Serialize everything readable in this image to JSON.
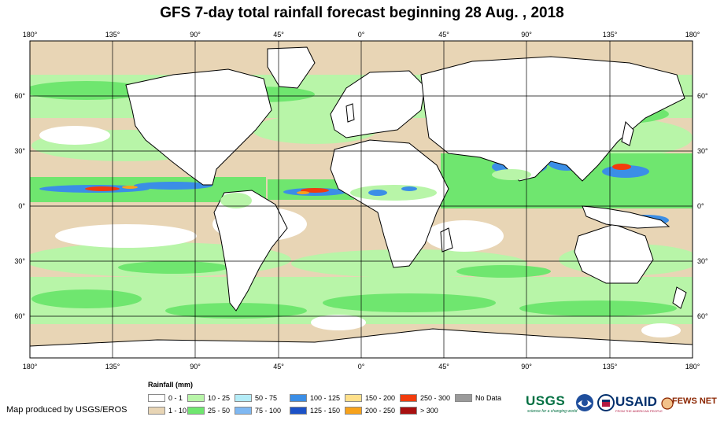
{
  "title": "GFS 7-day total rainfall forecast beginning 28 Aug. , 2018",
  "axes": {
    "lon_labels": [
      "180°",
      "135°",
      "90°",
      "45°",
      "0°",
      "45°",
      "90°",
      "135°",
      "180°"
    ],
    "lat_labels": [
      "60°",
      "30°",
      "0°",
      "30°",
      "60°"
    ]
  },
  "legend": {
    "title": "Rainfall (mm)",
    "items": [
      {
        "label": "0 - 1",
        "color": "#ffffff"
      },
      {
        "label": "1 - 10",
        "color": "#e8d5b5"
      },
      {
        "label": "10 - 25",
        "color": "#b8f5a8"
      },
      {
        "label": "25 - 50",
        "color": "#6fe66f"
      },
      {
        "label": "50 - 75",
        "color": "#b4ecf7"
      },
      {
        "label": "75 - 100",
        "color": "#7fb8f2"
      },
      {
        "label": "100 - 125",
        "color": "#3b8ee6"
      },
      {
        "label": "125 - 150",
        "color": "#1c52c7"
      },
      {
        "label": "150 - 200",
        "color": "#ffe08a"
      },
      {
        "label": "200 - 250",
        "color": "#f7a21b"
      },
      {
        "label": "250 - 300",
        "color": "#f23c0c"
      },
      {
        "label": "> 300",
        "color": "#a81010"
      },
      {
        "label": "No Data",
        "color": "#9a9a9a"
      }
    ]
  },
  "credit": "Map produced by USGS/EROS",
  "logos": {
    "usgs": "USGS",
    "usgs_tagline": "science for a changing world",
    "noaa_icon": "noaa-logo",
    "usaid_seal": "usaid-seal",
    "usaid": "USAID",
    "usaid_tagline": "FROM THE AMERICAN PEOPLE",
    "fews": "FEWS NET"
  }
}
